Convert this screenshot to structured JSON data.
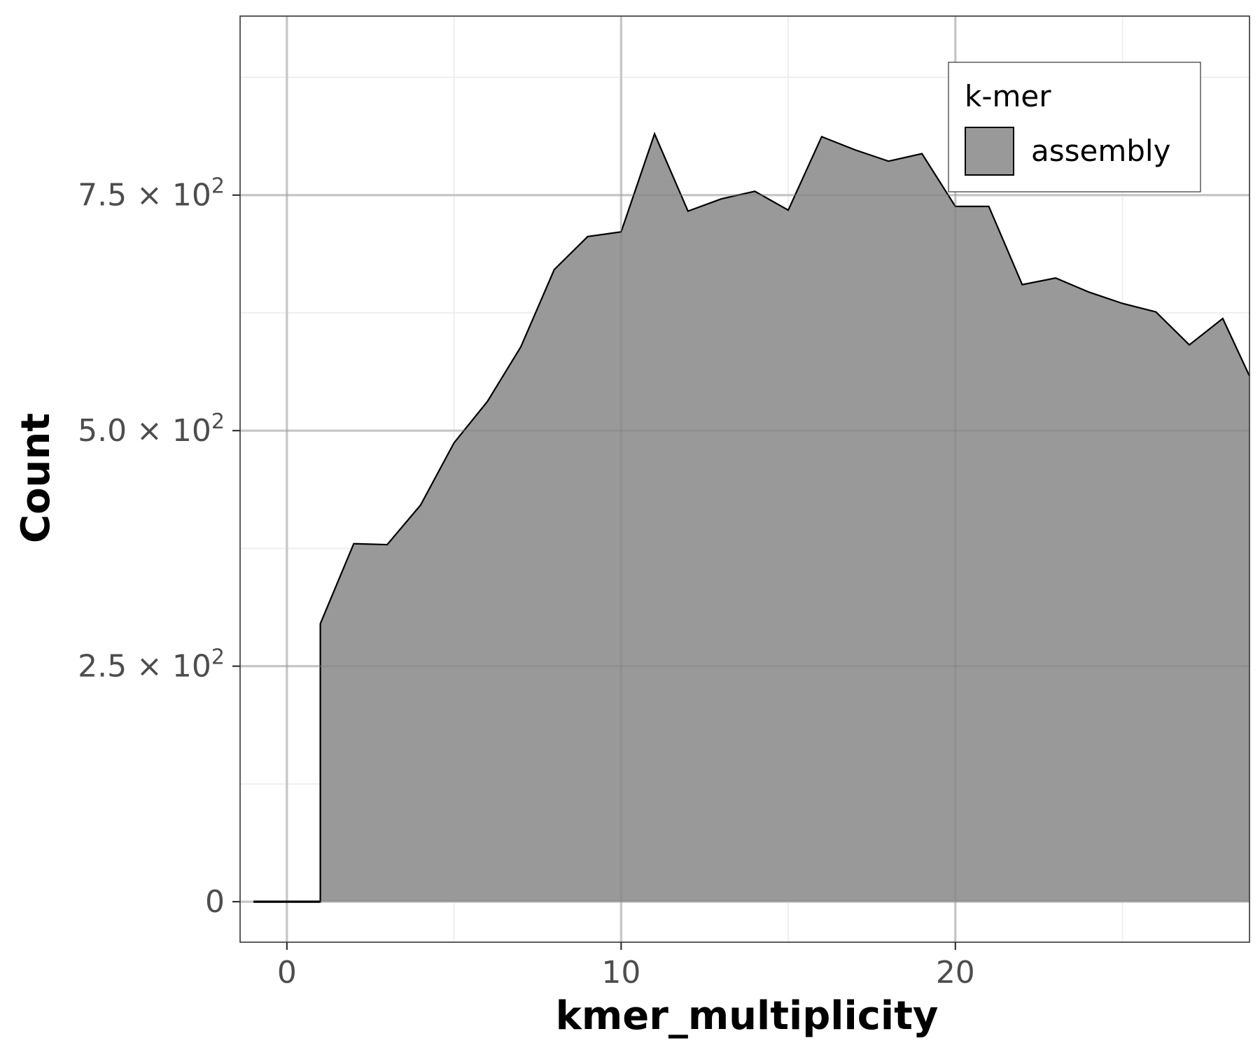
{
  "chart_data": {
    "type": "area",
    "xlabel": "kmer_multiplicity",
    "ylabel": "Count",
    "xlim": [
      -1.4,
      28.8
    ],
    "ylim": [
      -43,
      940
    ],
    "x_ticks": [
      {
        "value": 0,
        "label": "0"
      },
      {
        "value": 10,
        "label": "10"
      },
      {
        "value": 20,
        "label": "20"
      }
    ],
    "y_ticks": [
      {
        "value": 0,
        "mantissa": "0",
        "exponent": ""
      },
      {
        "value": 250,
        "mantissa": "2.5 × 10",
        "exponent": "2"
      },
      {
        "value": 500,
        "mantissa": "5.0 × 10",
        "exponent": "2"
      },
      {
        "value": 750,
        "mantissa": "7.5 × 10",
        "exponent": "2"
      }
    ],
    "grid": true,
    "legend": {
      "title": "k-mer",
      "position": "top-right",
      "entries": [
        "assembly"
      ]
    },
    "series": [
      {
        "name": "assembly",
        "fill": "#999999",
        "x": [
          -1,
          0,
          1,
          1,
          2,
          3,
          4,
          5,
          6,
          7,
          8,
          9,
          10,
          11,
          12,
          13,
          14,
          15,
          16,
          17,
          18,
          19,
          20,
          21,
          22,
          23,
          24,
          25,
          26,
          27,
          28,
          28.8
        ],
        "y": [
          0,
          0,
          0,
          295,
          380,
          379,
          421,
          487,
          531,
          589,
          671,
          706,
          711,
          815,
          733,
          746,
          754,
          734,
          812,
          798,
          786,
          794,
          738,
          738,
          655,
          662,
          647,
          635,
          626,
          591,
          619,
          558
        ]
      }
    ]
  }
}
